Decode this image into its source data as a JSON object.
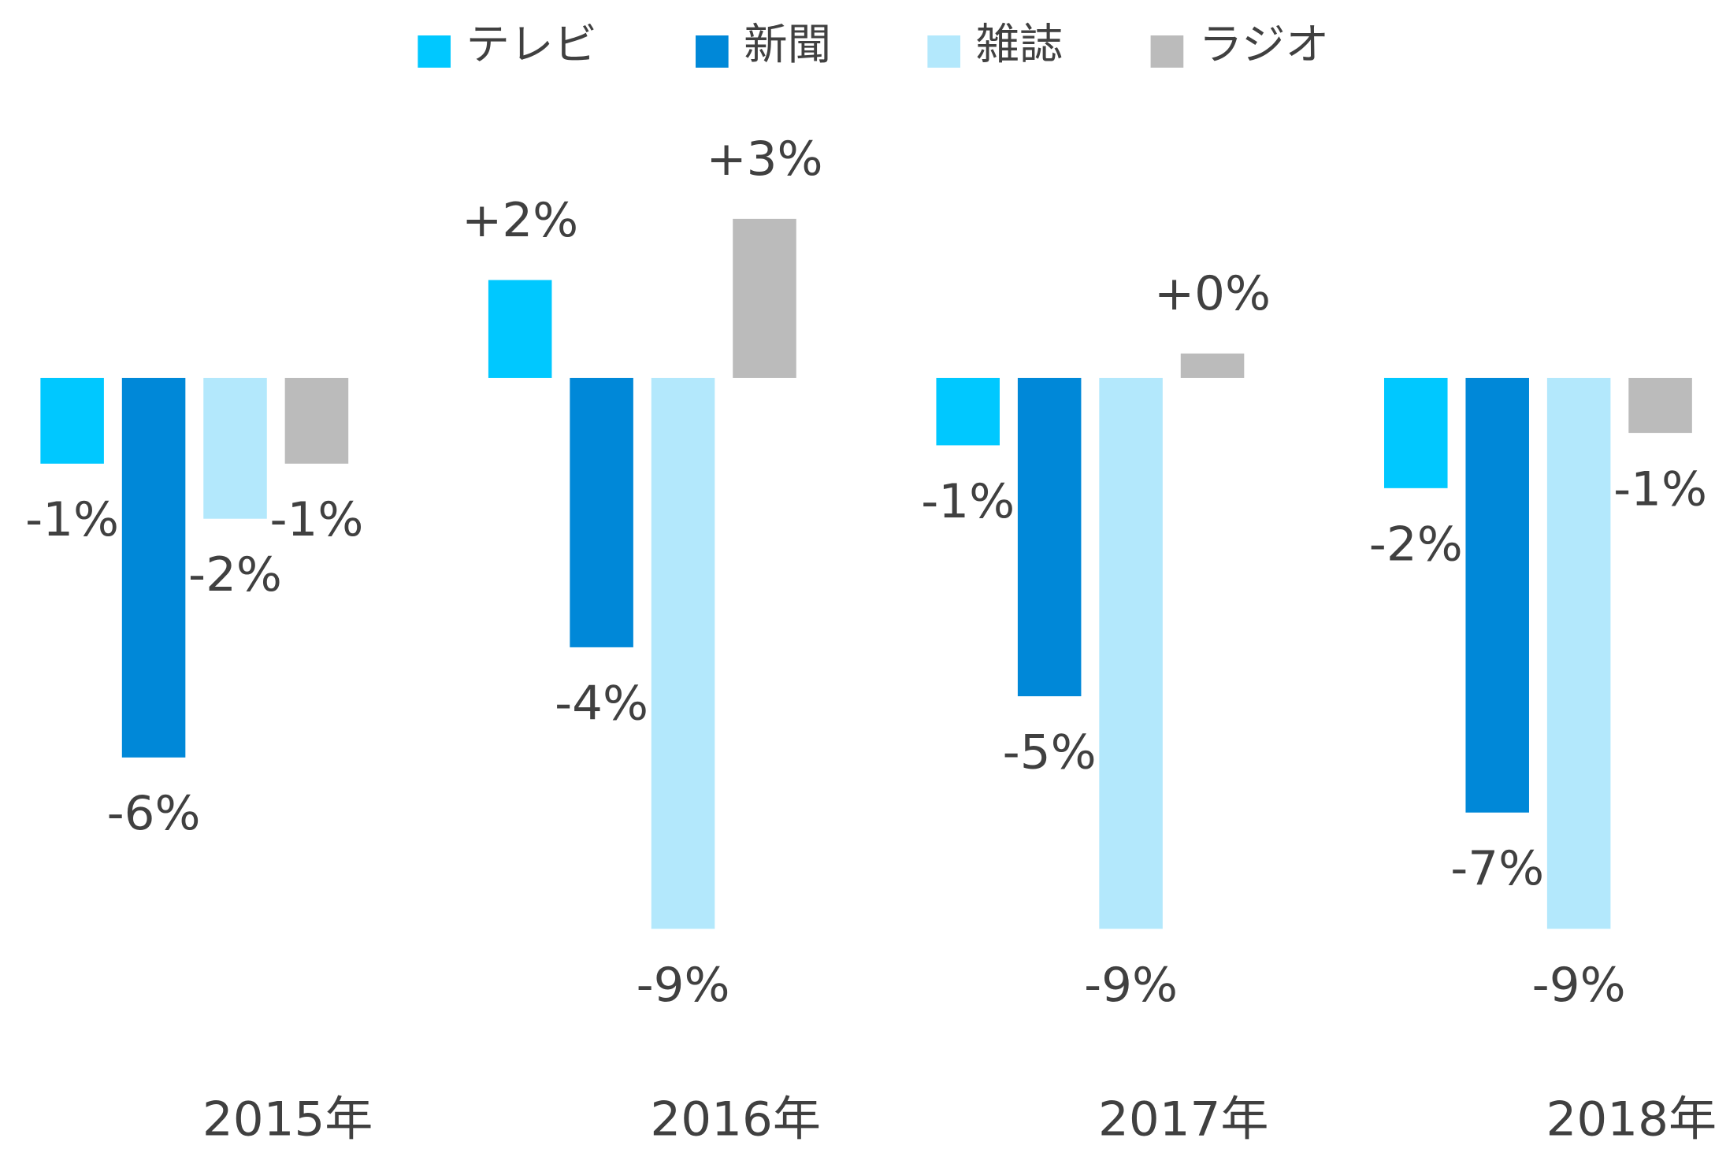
{
  "chart_data": {
    "type": "bar",
    "categories": [
      "2015年",
      "2016年",
      "2017年",
      "2018年"
    ],
    "series": [
      {
        "name": "テレビ",
        "color": "#00c8ff",
        "values": [
          -1.4,
          1.6,
          -1.1,
          -1.8
        ],
        "value_labels": [
          "-1%",
          "+2%",
          "-1%",
          "-2%"
        ]
      },
      {
        "name": "新聞",
        "color": "#0088d8",
        "values": [
          -6.2,
          -4.4,
          -5.2,
          -7.1
        ],
        "value_labels": [
          "-6%",
          "-4%",
          "-5%",
          "-7%"
        ]
      },
      {
        "name": "雑誌",
        "color": "#b3e8fc",
        "values": [
          -2.3,
          -9.0,
          -9.0,
          -9.0
        ],
        "value_labels": [
          "-2%",
          "-9%",
          "-9%",
          "-9%"
        ]
      },
      {
        "name": "ラジオ",
        "color": "#bbbbbb",
        "values": [
          -1.4,
          2.6,
          0.4,
          -0.9
        ],
        "value_labels": [
          "-1%",
          "+3%",
          "+0%",
          "-1%"
        ]
      }
    ],
    "ylim": [
      -10,
      4
    ],
    "legend": "top"
  }
}
